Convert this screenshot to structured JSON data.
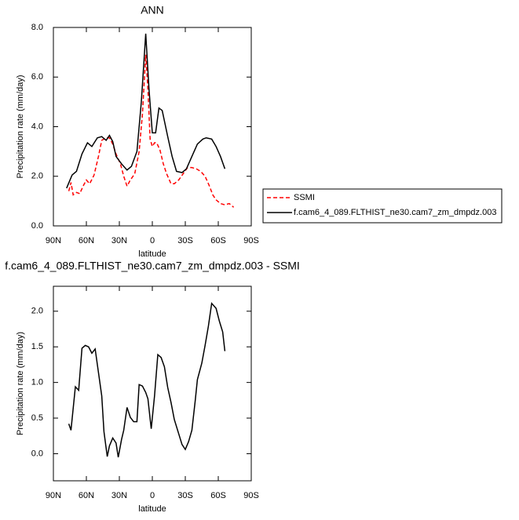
{
  "chart_data": [
    {
      "type": "line",
      "title": "ANN",
      "xlabel": "latitude",
      "ylabel": "Precipitation rate (mm/day)",
      "xlim": [
        90,
        -90
      ],
      "xticks": [
        {
          "value": 90,
          "label": "90N"
        },
        {
          "value": 60,
          "label": "60N"
        },
        {
          "value": 30,
          "label": "30N"
        },
        0,
        {
          "value": -30,
          "label": "30S"
        },
        {
          "value": -60,
          "label": "60S"
        },
        {
          "value": -90,
          "label": "90S"
        }
      ],
      "ylim": [
        0,
        8
      ],
      "yticks": [
        {
          "value": 0,
          "label": "0.0"
        },
        {
          "value": 2,
          "label": "2.0"
        },
        {
          "value": 4,
          "label": "4.0"
        },
        {
          "value": 6,
          "label": "6.0"
        },
        {
          "value": 8,
          "label": "8.0"
        }
      ],
      "legend": "right",
      "series": [
        {
          "name": "SSMI",
          "color": "#ff0000",
          "dashed": true,
          "x": [
            76,
            74,
            72,
            69,
            66,
            63,
            60,
            57,
            53,
            49,
            46,
            42,
            39,
            36,
            33,
            29,
            26,
            23,
            20,
            16,
            12,
            9,
            6,
            4,
            2,
            0,
            -2,
            -4,
            -7,
            -10,
            -13,
            -17,
            -20,
            -24,
            -28,
            -32,
            -36,
            -40,
            -44,
            -48,
            -52,
            -55,
            -58,
            -62,
            -66,
            -70,
            -74
          ],
          "values": [
            1.4,
            1.75,
            1.25,
            1.35,
            1.3,
            1.6,
            1.85,
            1.7,
            2.05,
            2.8,
            3.45,
            3.55,
            3.55,
            3.3,
            2.9,
            2.5,
            2.0,
            1.6,
            1.85,
            2.1,
            3.0,
            4.5,
            6.9,
            5.5,
            3.5,
            3.2,
            3.35,
            3.35,
            3.05,
            2.5,
            2.1,
            1.7,
            1.7,
            1.85,
            2.1,
            2.35,
            2.35,
            2.3,
            2.2,
            2.0,
            1.6,
            1.25,
            1.05,
            0.9,
            0.85,
            0.9,
            0.75
          ]
        },
        {
          "name": "f.cam6_4_089.FLTHIST_ne30.cam7_zm_dmpdz.003",
          "color": "#000000",
          "dashed": false,
          "x": [
            78,
            73,
            69,
            64,
            59,
            55,
            50,
            46,
            42,
            39,
            36,
            33,
            28,
            23,
            19,
            14,
            10,
            6,
            3,
            0,
            -3,
            -6,
            -9,
            -14,
            -18,
            -22,
            -27,
            -31,
            -36,
            -41,
            -46,
            -49,
            -54,
            -58,
            -62,
            -66
          ],
          "values": [
            1.52,
            2.05,
            2.2,
            2.9,
            3.35,
            3.2,
            3.55,
            3.6,
            3.45,
            3.65,
            3.4,
            2.8,
            2.5,
            2.25,
            2.4,
            3.0,
            5.0,
            7.75,
            5.5,
            3.75,
            3.75,
            4.75,
            4.65,
            3.6,
            2.8,
            2.2,
            2.15,
            2.3,
            2.8,
            3.3,
            3.5,
            3.55,
            3.5,
            3.2,
            2.8,
            2.3
          ]
        }
      ]
    },
    {
      "type": "line",
      "title": "f.cam6_4_089.FLTHIST_ne30.cam7_zm_dmpdz.003 - SSMI",
      "xlabel": "latitude",
      "ylabel": "Precipitation rate (mm/day)",
      "xlim": [
        90,
        -90
      ],
      "xticks": [
        {
          "value": 90,
          "label": "90N"
        },
        {
          "value": 60,
          "label": "60N"
        },
        {
          "value": 30,
          "label": "30N"
        },
        0,
        {
          "value": -30,
          "label": "30S"
        },
        {
          "value": -60,
          "label": "60S"
        },
        {
          "value": -90,
          "label": "90S"
        }
      ],
      "ylim": [
        -0.38,
        2.35
      ],
      "yticks": [
        {
          "value": 0,
          "label": "0.0"
        },
        0.5,
        {
          "value": 1,
          "label": "1.0"
        },
        1.5,
        {
          "value": 2,
          "label": "2.0"
        }
      ],
      "color": "#000000",
      "x": [
        76,
        74,
        70,
        67,
        64,
        61,
        58,
        55,
        52,
        49,
        46,
        44,
        41,
        39,
        36,
        33,
        31,
        28,
        26,
        23,
        20,
        17,
        14,
        12,
        9,
        6,
        4,
        1,
        -2,
        -5,
        -8,
        -11,
        -14,
        -17,
        -20,
        -24,
        -27,
        -30,
        -33,
        -36,
        -39,
        -41,
        -45,
        -48,
        -51,
        -54,
        -58,
        -61,
        -64,
        -66
      ],
      "values": [
        0.42,
        0.33,
        0.94,
        0.89,
        1.48,
        1.52,
        1.5,
        1.41,
        1.47,
        1.14,
        0.81,
        0.31,
        -0.04,
        0.11,
        0.22,
        0.15,
        -0.05,
        0.2,
        0.33,
        0.65,
        0.51,
        0.45,
        0.45,
        0.97,
        0.95,
        0.86,
        0.77,
        0.35,
        0.81,
        1.39,
        1.35,
        1.22,
        0.93,
        0.72,
        0.48,
        0.28,
        0.13,
        0.06,
        0.17,
        0.33,
        0.74,
        1.04,
        1.27,
        1.52,
        1.79,
        2.11,
        2.04,
        1.86,
        1.71,
        1.44
      ]
    }
  ]
}
